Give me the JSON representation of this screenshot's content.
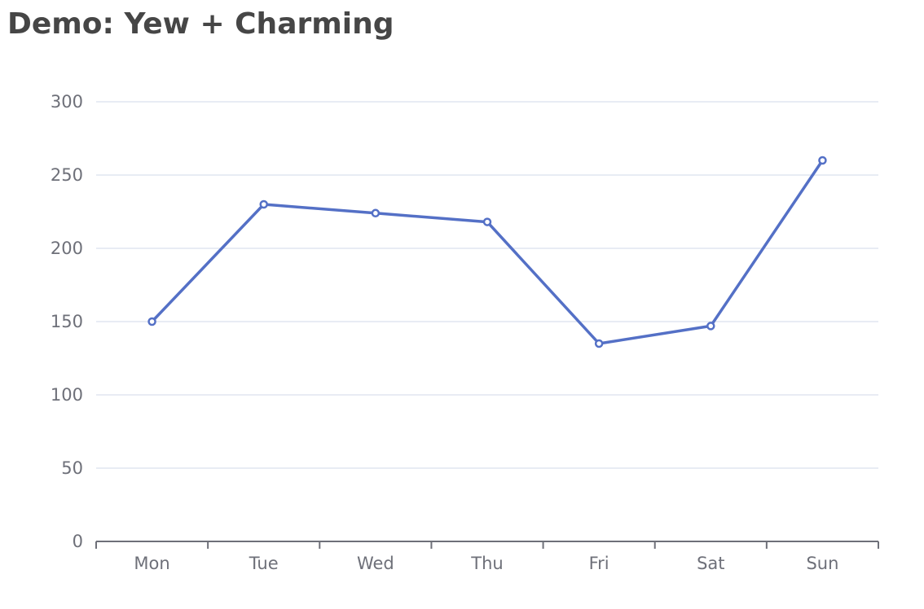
{
  "page": {
    "title": "Demo: Yew + Charming"
  },
  "chart_data": {
    "type": "line",
    "categories": [
      "Mon",
      "Tue",
      "Wed",
      "Thu",
      "Fri",
      "Sat",
      "Sun"
    ],
    "series": [
      {
        "values": [
          150,
          230,
          224,
          218,
          135,
          147,
          260
        ]
      }
    ],
    "ylim": [
      0,
      300
    ],
    "yticks": [
      "0",
      "50",
      "100",
      "150",
      "200",
      "250",
      "300"
    ],
    "grid": true,
    "colors": {
      "line": "#5470c6",
      "gridline": "#e0e6f1",
      "axis": "#6e7079",
      "tick_text": "#6e7079",
      "title": "#464646"
    }
  }
}
